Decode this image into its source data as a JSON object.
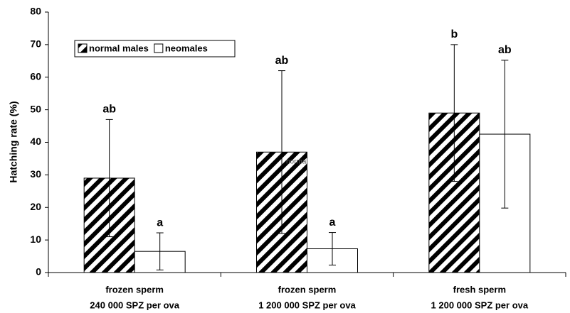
{
  "chart_data": {
    "type": "bar",
    "y_label": "Hatching rate (%)",
    "categories": [
      [
        "frozen sperm",
        "240 000 SPZ per ova"
      ],
      [
        "frozen sperm",
        "1 200 000 SPZ per ova"
      ],
      [
        "fresh sperm",
        "1 200 000 SPZ per ova"
      ]
    ],
    "series": [
      {
        "name": "normal males",
        "color": "#000000",
        "hatch": true,
        "values": [
          29,
          37,
          49
        ],
        "errors": [
          18,
          25,
          21
        ],
        "letters": [
          "ab",
          "ab",
          "b"
        ]
      },
      {
        "name": "neomales",
        "color": "#ffffff",
        "hatch": false,
        "values": [
          6.5,
          7.3,
          42.5
        ],
        "errors": [
          5.7,
          5,
          22.7
        ],
        "letters": [
          "a",
          "a",
          "ab"
        ]
      }
    ],
    "annotation": "normal",
    "ylim": [
      0,
      80
    ],
    "yticks": [
      0,
      10,
      20,
      30,
      40,
      50,
      60,
      70,
      80
    ],
    "legend": "top-left"
  }
}
